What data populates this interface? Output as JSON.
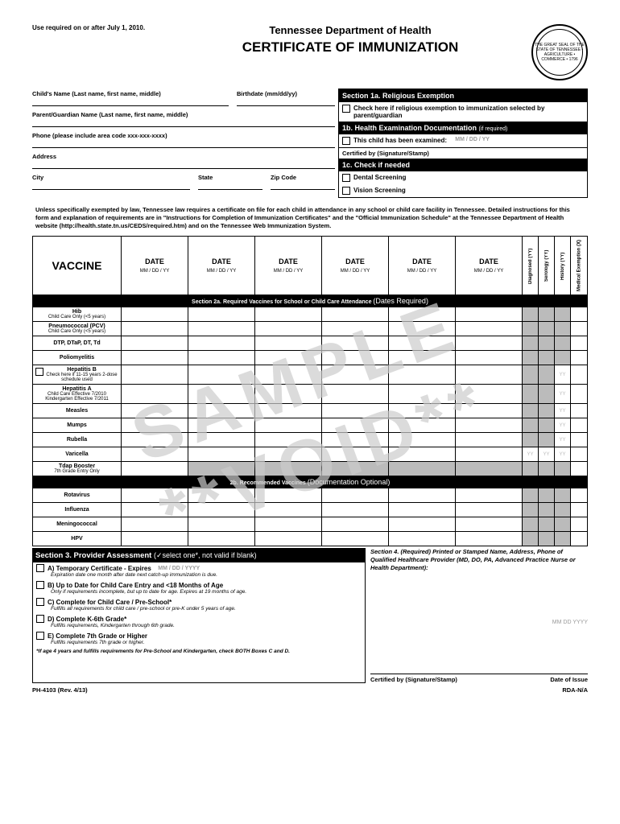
{
  "header": {
    "use_note": "Use required on or after July 1, 2010.",
    "dept": "Tennessee Department of Health",
    "title": "CERTIFICATE OF IMMUNIZATION",
    "seal_text": "THE GREAT SEAL OF THE STATE OF TENNESSEE • AGRICULTURE • COMMERCE • 1796"
  },
  "fields": {
    "child_name": "Child's Name  (Last name, first name, middle)",
    "birthdate": "Birthdate (mm/dd/yy)",
    "parent": "Parent/Guardian Name  (Last name, first name, middle)",
    "phone": "Phone (please include area code  xxx-xxx-xxxx)",
    "address": "Address",
    "city": "City",
    "state": "State",
    "zip": "Zip Code"
  },
  "sec1a": {
    "title": "Section 1a. Religious Exemption",
    "text": "Check here if religious exemption to immunization selected by parent/guardian"
  },
  "sec1b": {
    "title": "1b. Health Examination Documentation",
    "title_sm": "(if required)",
    "text": "This child has been examined:",
    "date_ph": "MM  /  DD  /  YY",
    "cert": "Certified by (Signature/Stamp)"
  },
  "sec1c": {
    "title": "1c. Check if needed",
    "dental": "Dental Screening",
    "vision": "Vision Screening"
  },
  "notice": "Unless specifically exempted by law, Tennessee law requires a certificate on file for each child in attendance in any school or child care facility in Tennessee.  Detailed instructions for this form and explanation of requirements are in \"Instructions for Completion of Immunization Certificates\" and the \"Official Immunization Schedule\" at the Tennessee Department of Health website (http://health.state.tn.us/CEDS/required.htm) and on the Tennessee Web Immunization System.",
  "table": {
    "vaccine_h": "VACCINE",
    "date_h": "DATE",
    "date_sub": "MM / DD / YY",
    "rot_cols": [
      "Diagnosed (YY)",
      "Serology (YY)",
      "History (YY)",
      "Medical Exemption (X)"
    ],
    "sec2a": "Section 2a. Required Vaccines for School or Child Care Attendance",
    "sec2a_sm": "(Dates Required)",
    "sec2b": "2b. Recommended Vaccines",
    "sec2b_sm": "(Documentation Optional)",
    "rows2a": [
      {
        "name": "Hib",
        "sub": "Child Care Only (<5 years)",
        "gray_from": 6,
        "chk": false
      },
      {
        "name": "Pneumococcal (PCV)",
        "sub": "Child Care Only (<5 years)",
        "gray_from": 6,
        "chk": false
      },
      {
        "name": "DTP, DTaP, DT, Td",
        "sub": "",
        "gray_from": 6,
        "chk": false
      },
      {
        "name": "Poliomyelitis",
        "sub": "",
        "gray_from": 6,
        "chk": false
      },
      {
        "name": "Hepatitis B",
        "sub": "Check here if 11-15 years 2-dose schedule used",
        "gray_from": 6,
        "yy": [
          8
        ],
        "chk": true
      },
      {
        "name": "Hepatitis A",
        "sub": "Child Care Effective 7/2010 Kindergarten Effective 7/2011",
        "gray_from": 6,
        "yy": [
          8
        ],
        "chk": false
      },
      {
        "name": "Measles",
        "sub": "",
        "gray_from": 6,
        "yy": [
          8
        ],
        "chk": false
      },
      {
        "name": "Mumps",
        "sub": "",
        "gray_from": 6,
        "yy": [
          8
        ],
        "chk": false
      },
      {
        "name": "Rubella",
        "sub": "",
        "gray_from": 6,
        "yy": [
          8
        ],
        "chk": false
      },
      {
        "name": "Varicella",
        "sub": "",
        "gray_from": 6,
        "yy": [
          6,
          7,
          8
        ],
        "chk": false
      },
      {
        "name": "Tdap Booster",
        "sub": "7th Grade Entry Only",
        "gray_from": 1,
        "chk": false
      }
    ],
    "rows2b": [
      {
        "name": "Rotavirus"
      },
      {
        "name": "Influenza"
      },
      {
        "name": "Meningococcal"
      },
      {
        "name": "HPV"
      }
    ]
  },
  "sec3": {
    "title": "Section 3. Provider Assessment",
    "title_sm": "(✓select one*, not valid if blank)",
    "items": [
      {
        "label": "A) Temporary Certificate - Expires",
        "date": "MM  /  DD  /  YYYY",
        "sub": "Expiration date one month after date next catch-up immunization is due."
      },
      {
        "label": "B) Up to Date for Child Care Entry and <18 Months of Age",
        "sub": "Only if requirements incomplete, but up to date for age. Expires at 19 months of age."
      },
      {
        "label": "C) Complete for Child Care / Pre-School*",
        "sub": "Fulfills all requirements for child care / pre-school or pre-K under 5 years of age."
      },
      {
        "label": "D) Complete K-6th Grade*",
        "sub": "Fulfills requirements, Kindergarten through 6th grade."
      },
      {
        "label": "E) Complete 7th Grade or Higher",
        "sub": "Fulfills requirements 7th grade or higher."
      }
    ],
    "foot": "*If age 4 years and fulfills requirements for Pre-School and Kindergarten, check BOTH Boxes C and D."
  },
  "sec4": {
    "text": "Section 4. (Required) Printed or Stamped Name, Address, Phone of Qualified Healthcare Provider (MD, DO, PA, Advanced Practice Nurse or Health Department):",
    "date_ph": "MM    DD    YYYY",
    "cert": "Certified by (Signature/Stamp)",
    "doi": "Date of Issue"
  },
  "footer": {
    "left": "PH-4103 (Rev. 4/13)",
    "right": "RDA-N/A"
  }
}
